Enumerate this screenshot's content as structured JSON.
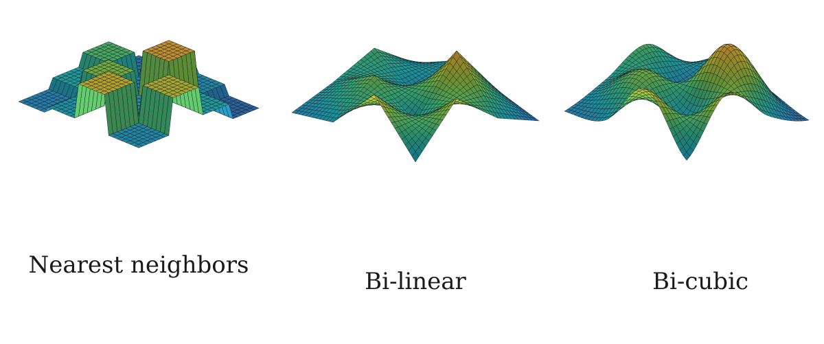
{
  "figure": {
    "panels": [
      {
        "caption": "Nearest neighbors",
        "method": "nearest"
      },
      {
        "caption": "Bi-linear",
        "method": "bilinear"
      },
      {
        "caption": "Bi-cubic",
        "method": "bicubic"
      }
    ],
    "colormap": [
      "#3a4ea8",
      "#2d8fd0",
      "#21b9c4",
      "#3fc98e",
      "#8fd24a",
      "#d9c93a",
      "#f0a33a"
    ]
  }
}
